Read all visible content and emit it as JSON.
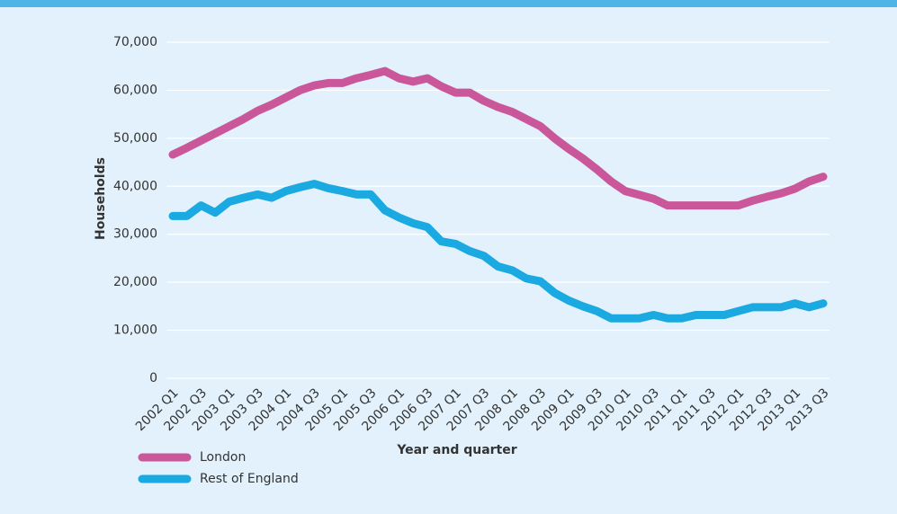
{
  "chart_data": {
    "type": "line",
    "x_label": "Year and quarter",
    "y_label": "Households",
    "categories": [
      "2002 Q1",
      null,
      "2002 Q3",
      null,
      "2003 Q1",
      null,
      "2003 Q3",
      null,
      "2004 Q1",
      null,
      "2004 Q3",
      null,
      "2005 Q1",
      null,
      "2005 Q3",
      null,
      "2006 Q1",
      null,
      "2006 Q3",
      null,
      "2007 Q1",
      null,
      "2007 Q3",
      null,
      "2008 Q1",
      null,
      "2008 Q3",
      null,
      "2009 Q1",
      null,
      "2009 Q3",
      null,
      "2010 Q1",
      null,
      "2010 Q3",
      null,
      "2011 Q1",
      null,
      "2011 Q3",
      null,
      "2012 Q1",
      null,
      "2012 Q3",
      null,
      "2013 Q1",
      null,
      "2013 Q3"
    ],
    "series": [
      {
        "name": "London",
        "color": "#c9579a",
        "values": [
          46600,
          48000,
          49500,
          51000,
          52500,
          54000,
          55700,
          57000,
          58500,
          60000,
          61000,
          61500,
          61500,
          62500,
          63200,
          64000,
          62500,
          61800,
          62500,
          60800,
          59500,
          59500,
          57800,
          56500,
          55500,
          54000,
          52500,
          50000,
          47800,
          45800,
          43500,
          41000,
          39000,
          38200,
          37400,
          36000,
          36000,
          36000,
          36000,
          36000,
          36000,
          37000,
          37800,
          38500,
          39500,
          41000,
          42000
        ]
      },
      {
        "name": "Rest of England",
        "color": "#1aa9e0",
        "values": [
          33800,
          33800,
          36000,
          34500,
          36800,
          37600,
          38300,
          37600,
          39000,
          39800,
          40500,
          39600,
          39000,
          38300,
          38300,
          35000,
          33500,
          32300,
          31500,
          28500,
          28000,
          26500,
          25500,
          23300,
          22500,
          20800,
          20200,
          17800,
          16200,
          15000,
          14000,
          12500,
          12500,
          12500,
          13200,
          12500,
          12500,
          13200,
          13200,
          13200,
          14000,
          14800,
          14800,
          14800,
          15600,
          14800,
          15600
        ]
      }
    ],
    "ylim": [
      0,
      70000
    ],
    "yticks": [
      0,
      {
        "value": 10000,
        "label": "10,000"
      },
      {
        "value": 20000,
        "label": "20,000"
      },
      {
        "value": 30000,
        "label": "30,000"
      },
      {
        "value": 40000,
        "label": "40,000"
      },
      {
        "value": 50000,
        "label": "50,000"
      },
      {
        "value": 60000,
        "label": "60,000"
      },
      {
        "value": 70000,
        "label": "70,000"
      }
    ],
    "grid": true
  }
}
